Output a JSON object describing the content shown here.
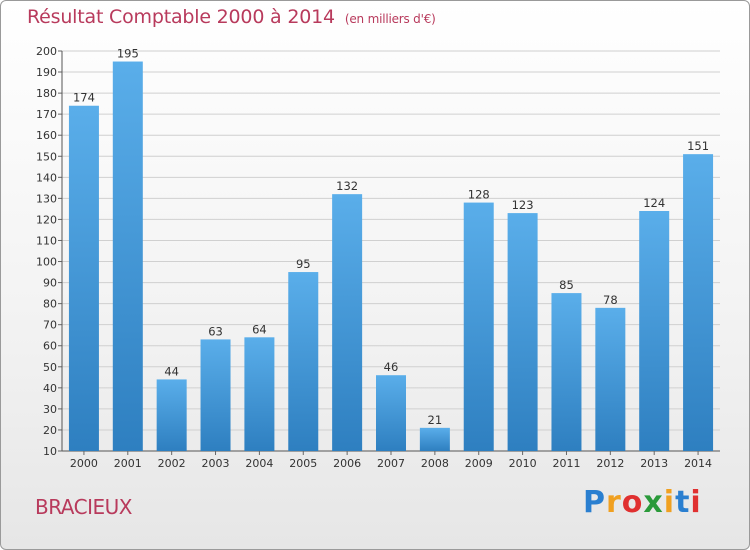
{
  "title": {
    "main": "Résultat Comptable 2000 à 2014",
    "unit": "(en milliers d'€)"
  },
  "commune": "BRACIEUX",
  "brand": {
    "letters": [
      "P",
      "r",
      "o",
      "x",
      "i",
      "t",
      "i"
    ],
    "colors": [
      "#2a7fd0",
      "#f0a020",
      "#e03030",
      "#2a9a3a",
      "#f0a020",
      "#2a7fd0",
      "#e03030"
    ]
  },
  "colors": {
    "title": "#b83a5c",
    "bar_light": "#5aaeea",
    "bar_dark": "#2e7fc0",
    "grid": "#d0d0d0"
  },
  "chart_data": {
    "type": "bar",
    "title": "Résultat Comptable 2000 à 2014",
    "xlabel": "",
    "ylabel": "",
    "categories": [
      "2000",
      "2001",
      "2002",
      "2003",
      "2004",
      "2005",
      "2006",
      "2007",
      "2008",
      "2009",
      "2010",
      "2011",
      "2012",
      "2013",
      "2014"
    ],
    "values": [
      174,
      195,
      44,
      63,
      64,
      95,
      132,
      46,
      21,
      128,
      123,
      85,
      78,
      124,
      151
    ],
    "ylim": [
      10,
      200
    ],
    "yticks": [
      10,
      20,
      30,
      40,
      50,
      60,
      70,
      80,
      90,
      100,
      110,
      120,
      130,
      140,
      150,
      160,
      170,
      180,
      190,
      200
    ],
    "grid": true
  }
}
